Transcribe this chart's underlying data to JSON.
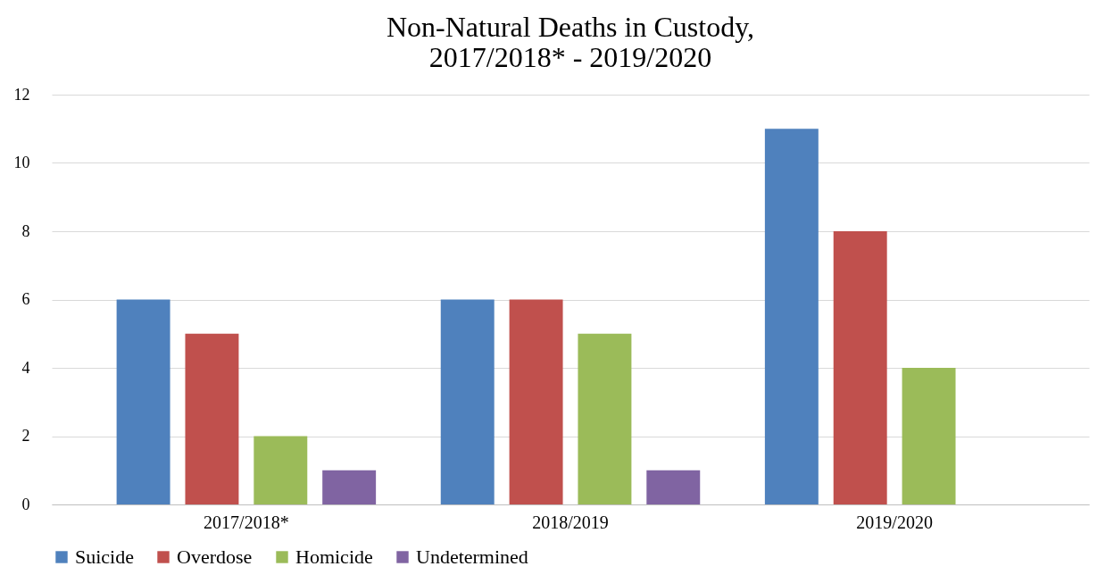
{
  "chart_data": {
    "type": "bar",
    "title": "Non-Natural Deaths in Custody,\n2017/2018* - 2019/2020",
    "categories": [
      "2017/2018*",
      "2018/2019",
      "2019/2020"
    ],
    "series": [
      {
        "name": "Suicide",
        "color": "#4f81bd",
        "values": [
          6,
          6,
          11
        ]
      },
      {
        "name": "Overdose",
        "color": "#c0504d",
        "values": [
          5,
          6,
          8
        ]
      },
      {
        "name": "Homicide",
        "color": "#9bbb59",
        "values": [
          2,
          5,
          4
        ]
      },
      {
        "name": "Undetermined",
        "color": "#8064a2",
        "values": [
          1,
          1,
          0
        ]
      }
    ],
    "ylim": [
      0,
      12
    ],
    "yticks": [
      0,
      2,
      4,
      6,
      8,
      10,
      12
    ],
    "grid": "y",
    "legend": "bottom"
  }
}
